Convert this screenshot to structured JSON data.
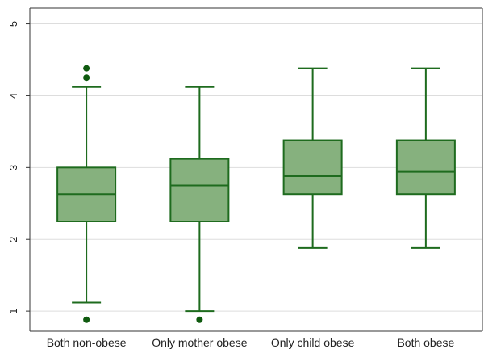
{
  "chart_data": {
    "type": "box",
    "categories": [
      "Both non-obese",
      "Only mother obese",
      "Only child obese",
      "Both obese"
    ],
    "boxes": [
      {
        "category": "Both non-obese",
        "whisker_low": 1.12,
        "q1": 2.25,
        "median": 2.63,
        "q3": 3.0,
        "whisker_high": 4.12,
        "outliers": [
          0.88,
          4.25,
          4.38
        ]
      },
      {
        "category": "Only mother obese",
        "whisker_low": 1.0,
        "q1": 2.25,
        "median": 2.75,
        "q3": 3.12,
        "whisker_high": 4.12,
        "outliers": [
          0.88
        ]
      },
      {
        "category": "Only child obese",
        "whisker_low": 1.88,
        "q1": 2.63,
        "median": 2.88,
        "q3": 3.38,
        "whisker_high": 4.38,
        "outliers": []
      },
      {
        "category": "Both obese",
        "whisker_low": 1.88,
        "q1": 2.63,
        "median": 2.94,
        "q3": 3.38,
        "whisker_high": 4.38,
        "outliers": []
      }
    ],
    "y_ticks": [
      1,
      2,
      3,
      4,
      5
    ],
    "ylim": [
      0.72,
      5.22
    ],
    "y_tick_rotation": "vertical",
    "grid": "horizontal",
    "title": "",
    "xlabel": "",
    "ylabel": "",
    "colors": {
      "box_fill": "#86b17e",
      "box_stroke": "#1e6b1e",
      "outlier": "#0f5a0f",
      "grid": "#dddddd",
      "axis": "#333333"
    }
  }
}
